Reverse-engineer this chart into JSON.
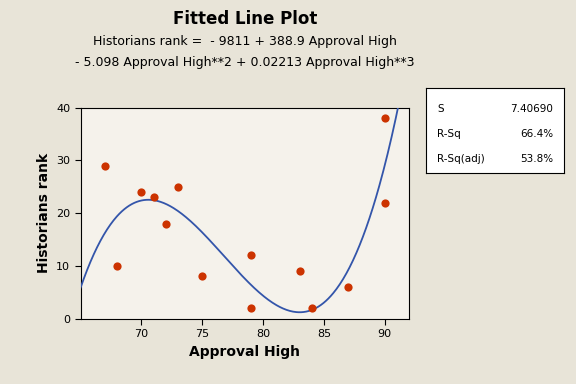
{
  "title": "Fitted Line Plot",
  "subtitle1": "Historians rank =  - 9811 + 388.9 Approval High",
  "subtitle2": "- 5.098 Approval High**2 + 0.02213 Approval High**3",
  "xlabel": "Approval High",
  "ylabel": "Historians rank",
  "scatter_x": [
    67,
    68,
    70,
    71,
    72,
    73,
    75,
    79,
    79,
    83,
    84,
    87,
    90,
    90
  ],
  "scatter_y": [
    29,
    10,
    24,
    23,
    18,
    25,
    8,
    12,
    2,
    9,
    2,
    6,
    22,
    38
  ],
  "scatter_color": "#cc3300",
  "line_color": "#3355aa",
  "poly_coeffs": [
    0.02213,
    -5.098,
    388.9,
    -9811
  ],
  "xlim": [
    65,
    92
  ],
  "ylim": [
    0,
    40
  ],
  "xticks": [
    70,
    75,
    80,
    85,
    90
  ],
  "yticks": [
    0,
    10,
    20,
    30,
    40
  ],
  "background_color": "#e8e4d8",
  "plot_bg_color": "#f5f2eb",
  "stats_S": "7.40690",
  "stats_Rsq": "66.4%",
  "stats_Rsqadj": "53.8%",
  "title_fontsize": 12,
  "subtitle_fontsize": 9,
  "label_fontsize": 10
}
